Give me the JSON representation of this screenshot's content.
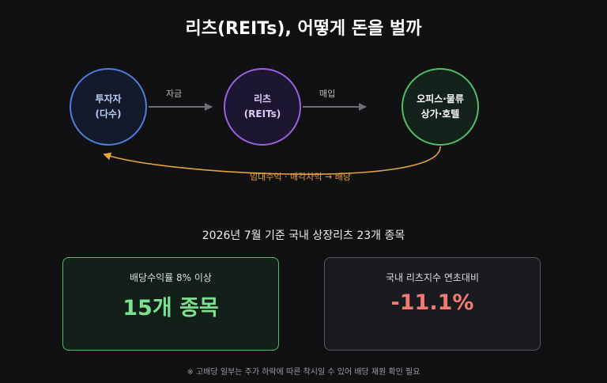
{
  "title": "리츠(REITs), 어떻게 돈을 벌까",
  "flow": {
    "nodes": [
      {
        "line1": "투자자",
        "line2": "(다수)",
        "color": "#4f7de0"
      },
      {
        "line1": "리츠",
        "line2": "(REITs)",
        "color": "#9a62e0"
      },
      {
        "line1": "오피스·물류",
        "line2": "상가·호텔",
        "color": "#4fbf68"
      }
    ],
    "edges": [
      {
        "label": "자금"
      },
      {
        "label": "매입"
      }
    ],
    "return_label": "임대수익 · 매각차익 → 배당",
    "return_color": "#e6a23c"
  },
  "subtitle": "2026년 7월 기준 국내 상장리츠 23개 종목",
  "cards": [
    {
      "label": "배당수익률 8% 이상",
      "value": "15개 종목",
      "accent": "#7ee08f"
    },
    {
      "label": "국내 리츠지수 연초대비",
      "value": "-11.1%",
      "accent": "#ef7b72"
    }
  ],
  "footnote": "※ 고배당 일부는 주가 하락에 따른 착시일 수 있어 배당 재원 확인 필요"
}
